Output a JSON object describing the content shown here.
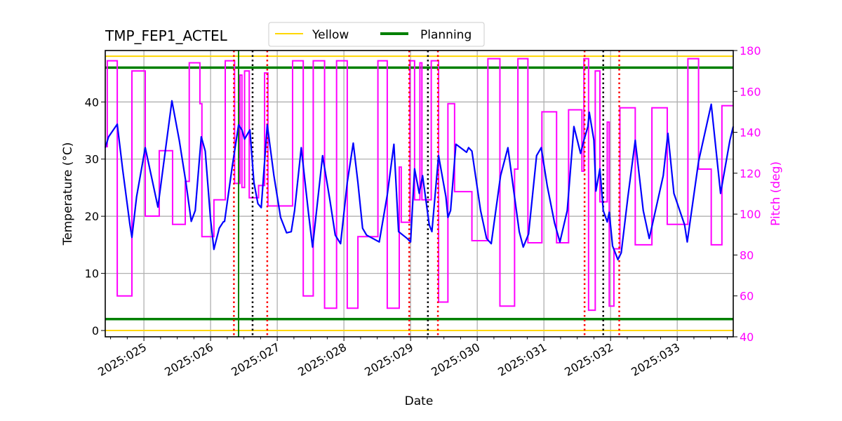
{
  "chart_data": {
    "type": "line",
    "title": "TMP_FEP1_ACTEL",
    "xlabel": "Date",
    "ylabel": "Temperature ($^\\circ$C)",
    "ylabel_display": "Temperature (°C)",
    "y2label": "Pitch (deg)",
    "xlim": [
      24.42,
      33.84
    ],
    "ylim": [
      -1.1,
      49
    ],
    "y2lim": [
      40,
      180
    ],
    "grid": true,
    "legend_placement": "top-center (above plot)",
    "x_ticks": [
      25,
      26,
      27,
      28,
      29,
      30,
      31,
      32,
      33
    ],
    "x_tick_labels": [
      "2025:025",
      "2025:026",
      "2025:027",
      "2025:028",
      "2025:029",
      "2025:030",
      "2025:031",
      "2025:032",
      "2025:033"
    ],
    "y_ticks": [
      0,
      10,
      20,
      30,
      40
    ],
    "y2_ticks": [
      40,
      60,
      80,
      100,
      120,
      140,
      160,
      180
    ],
    "colors": {
      "temperature": "#0000ff",
      "pitch": "#ff00ff",
      "yellow": "#ffd700",
      "planning": "#008000",
      "red_marker": "#ff0000",
      "black_marker": "#000000",
      "grid": "#b0b0b0"
    },
    "legend": [
      {
        "name": "Yellow",
        "color": "#ffd700"
      },
      {
        "name": "Planning",
        "color": "#008000"
      }
    ],
    "limit_lines": {
      "yellow": [
        0,
        48
      ],
      "planning": [
        2,
        46
      ]
    },
    "vertical_lines": {
      "green_solid": [
        26.42
      ],
      "red_dotted": [
        26.35,
        26.85,
        28.98,
        29.41,
        31.61,
        32.13
      ],
      "black_dotted": [
        26.63,
        29.26,
        31.89
      ]
    },
    "temperature": [
      [
        24.42,
        32.0
      ],
      [
        24.47,
        33.9
      ],
      [
        24.6,
        36.1
      ],
      [
        24.68,
        28.3
      ],
      [
        24.79,
        18.5
      ],
      [
        24.82,
        16.3
      ],
      [
        24.89,
        23.4
      ],
      [
        25.02,
        32.0
      ],
      [
        25.11,
        27.1
      ],
      [
        25.21,
        21.6
      ],
      [
        25.42,
        40.2
      ],
      [
        25.53,
        33.3
      ],
      [
        25.63,
        25.9
      ],
      [
        25.71,
        19.1
      ],
      [
        25.77,
        21.0
      ],
      [
        25.86,
        33.9
      ],
      [
        25.92,
        31.4
      ],
      [
        26.0,
        19.4
      ],
      [
        26.05,
        14.2
      ],
      [
        26.13,
        17.9
      ],
      [
        26.19,
        19.0
      ],
      [
        26.21,
        19.1
      ],
      [
        26.32,
        28.3
      ],
      [
        26.42,
        36.0
      ],
      [
        26.47,
        35.1
      ],
      [
        26.51,
        33.5
      ],
      [
        26.59,
        35.1
      ],
      [
        26.65,
        25.9
      ],
      [
        26.71,
        22.2
      ],
      [
        26.76,
        21.5
      ],
      [
        26.85,
        36.0
      ],
      [
        26.95,
        27.1
      ],
      [
        27.05,
        19.8
      ],
      [
        27.14,
        17.1
      ],
      [
        27.21,
        17.3
      ],
      [
        27.26,
        21.0
      ],
      [
        27.36,
        32.0
      ],
      [
        27.47,
        20.4
      ],
      [
        27.53,
        14.6
      ],
      [
        27.68,
        30.6
      ],
      [
        27.79,
        22.8
      ],
      [
        27.87,
        16.7
      ],
      [
        27.95,
        15.2
      ],
      [
        28.05,
        25.9
      ],
      [
        28.14,
        32.8
      ],
      [
        28.21,
        25.9
      ],
      [
        28.28,
        17.9
      ],
      [
        28.34,
        16.7
      ],
      [
        28.53,
        15.5
      ],
      [
        28.65,
        23.7
      ],
      [
        28.75,
        32.6
      ],
      [
        28.82,
        17.3
      ],
      [
        28.95,
        16.1
      ],
      [
        29.0,
        15.5
      ],
      [
        29.06,
        28.3
      ],
      [
        29.13,
        24.0
      ],
      [
        29.18,
        27.1
      ],
      [
        29.28,
        18.5
      ],
      [
        29.32,
        17.3
      ],
      [
        29.42,
        30.6
      ],
      [
        29.53,
        23.4
      ],
      [
        29.56,
        19.8
      ],
      [
        29.6,
        21.0
      ],
      [
        29.68,
        32.6
      ],
      [
        29.84,
        31.2
      ],
      [
        29.87,
        32.0
      ],
      [
        29.92,
        31.4
      ],
      [
        30.05,
        21.0
      ],
      [
        30.14,
        16.1
      ],
      [
        30.21,
        15.2
      ],
      [
        30.35,
        27.1
      ],
      [
        30.46,
        32.0
      ],
      [
        30.63,
        17.3
      ],
      [
        30.69,
        14.6
      ],
      [
        30.77,
        16.9
      ],
      [
        30.89,
        30.6
      ],
      [
        30.96,
        32.0
      ],
      [
        31.05,
        25.3
      ],
      [
        31.16,
        18.8
      ],
      [
        31.24,
        15.5
      ],
      [
        31.35,
        21.0
      ],
      [
        31.45,
        35.7
      ],
      [
        31.55,
        31.0
      ],
      [
        31.6,
        33.3
      ],
      [
        31.66,
        35.7
      ],
      [
        31.68,
        38.2
      ],
      [
        31.75,
        33.3
      ],
      [
        31.78,
        24.4
      ],
      [
        31.84,
        28.3
      ],
      [
        31.89,
        21.0
      ],
      [
        31.95,
        19.0
      ],
      [
        31.98,
        20.7
      ],
      [
        32.03,
        14.8
      ],
      [
        32.11,
        12.4
      ],
      [
        32.16,
        13.6
      ],
      [
        32.26,
        23.4
      ],
      [
        32.37,
        33.3
      ],
      [
        32.49,
        21.0
      ],
      [
        32.58,
        16.1
      ],
      [
        32.79,
        27.1
      ],
      [
        32.86,
        34.5
      ],
      [
        32.95,
        24.0
      ],
      [
        33.11,
        18.5
      ],
      [
        33.15,
        15.5
      ],
      [
        33.32,
        29.6
      ],
      [
        33.51,
        39.6
      ],
      [
        33.65,
        24.0
      ],
      [
        33.79,
        33.3
      ],
      [
        33.84,
        35.7
      ]
    ],
    "pitch": [
      [
        24.42,
        133
      ],
      [
        24.45,
        175
      ],
      [
        24.6,
        60
      ],
      [
        24.82,
        170
      ],
      [
        25.02,
        99
      ],
      [
        25.23,
        131
      ],
      [
        25.43,
        95
      ],
      [
        25.62,
        116
      ],
      [
        25.68,
        174
      ],
      [
        25.84,
        154
      ],
      [
        25.87,
        89
      ],
      [
        26.05,
        107
      ],
      [
        26.22,
        175
      ],
      [
        26.36,
        115
      ],
      [
        26.44,
        168
      ],
      [
        26.47,
        113
      ],
      [
        26.51,
        170
      ],
      [
        26.58,
        108
      ],
      [
        26.72,
        114
      ],
      [
        26.81,
        169
      ],
      [
        26.86,
        104
      ],
      [
        27.23,
        175
      ],
      [
        27.39,
        60
      ],
      [
        27.54,
        175
      ],
      [
        27.71,
        54
      ],
      [
        27.89,
        175
      ],
      [
        28.05,
        54
      ],
      [
        28.21,
        89
      ],
      [
        28.51,
        175
      ],
      [
        28.65,
        54
      ],
      [
        28.83,
        123
      ],
      [
        28.86,
        96
      ],
      [
        28.99,
        175
      ],
      [
        29.06,
        107
      ],
      [
        29.14,
        174
      ],
      [
        29.17,
        107
      ],
      [
        29.31,
        175
      ],
      [
        29.42,
        57
      ],
      [
        29.56,
        154
      ],
      [
        29.66,
        111
      ],
      [
        29.92,
        87
      ],
      [
        30.16,
        176
      ],
      [
        30.34,
        55
      ],
      [
        30.56,
        122
      ],
      [
        30.61,
        176
      ],
      [
        30.76,
        86
      ],
      [
        30.97,
        150
      ],
      [
        31.19,
        86
      ],
      [
        31.37,
        151
      ],
      [
        31.57,
        121
      ],
      [
        31.6,
        176
      ],
      [
        31.67,
        53
      ],
      [
        31.77,
        170
      ],
      [
        31.84,
        106
      ],
      [
        31.95,
        145
      ],
      [
        31.98,
        55
      ],
      [
        32.05,
        83
      ],
      [
        32.14,
        152
      ],
      [
        32.37,
        85
      ],
      [
        32.62,
        152
      ],
      [
        32.85,
        95
      ],
      [
        33.16,
        176
      ],
      [
        33.32,
        122
      ],
      [
        33.51,
        85
      ],
      [
        33.67,
        153
      ],
      [
        33.84,
        153
      ]
    ]
  }
}
